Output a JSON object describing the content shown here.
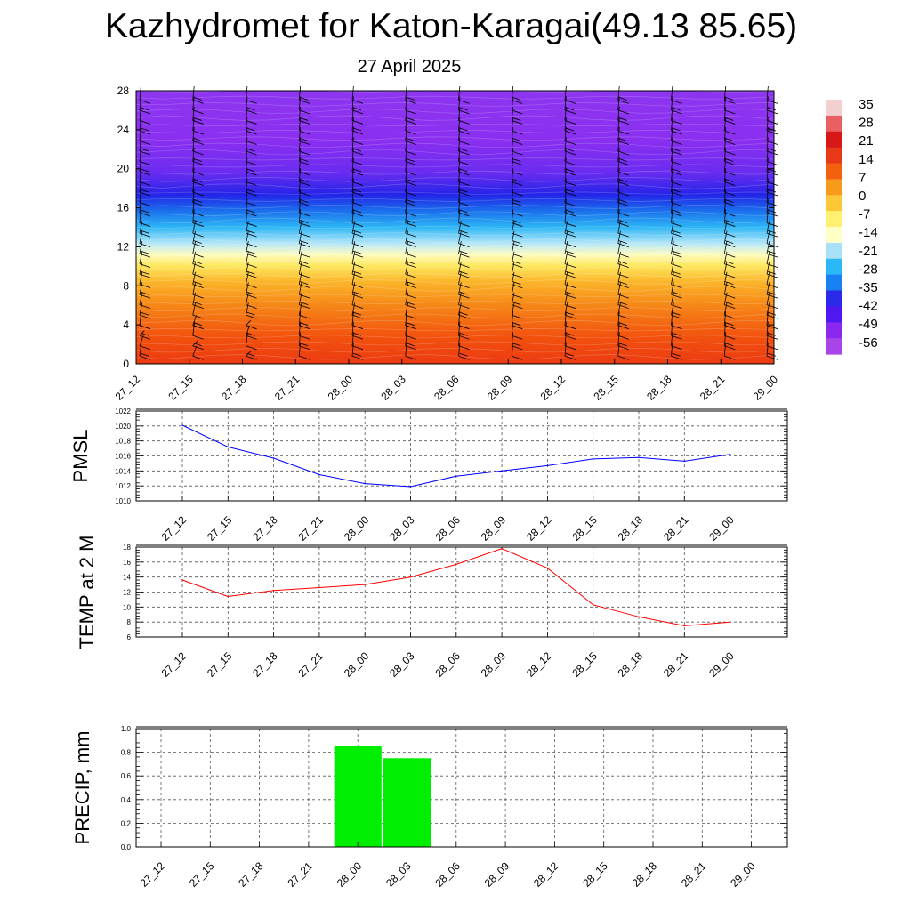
{
  "title": "Kazhydromet for Katon-Karagai(49.13 85.65)",
  "subtitle": "27 April 2025",
  "time_labels": [
    "27_12",
    "27_15",
    "27_18",
    "27_21",
    "28_00",
    "28_03",
    "28_06",
    "28_09",
    "28_12",
    "28_15",
    "28_18",
    "28_21",
    "29_00"
  ],
  "colorbar": {
    "labels": [
      "35",
      "28",
      "21",
      "14",
      "7",
      "0",
      "-7",
      "-14",
      "-21",
      "-28",
      "-35",
      "-42",
      "-49",
      "-56"
    ],
    "colors": [
      "#f2d0d0",
      "#e86060",
      "#d81818",
      "#e83818",
      "#f26010",
      "#f89a1c",
      "#fcc838",
      "#fff070",
      "#ffffc8",
      "#a8e0f8",
      "#2ab8f8",
      "#1880f0",
      "#2a2ae8",
      "#5018f0",
      "#8a28f0",
      "#a844e8"
    ]
  },
  "chart_data": [
    {
      "type": "heatmap",
      "title": "",
      "x_categories": [
        "27_12",
        "27_15",
        "27_18",
        "27_21",
        "28_00",
        "28_03",
        "28_06",
        "28_09",
        "28_12",
        "28_15",
        "28_18",
        "28_21",
        "29_00"
      ],
      "ylim": [
        0,
        28
      ],
      "yticks": [
        0,
        4,
        8,
        12,
        16,
        20,
        24,
        28
      ],
      "value_range": [
        -56,
        35
      ],
      "note_layers": [
        {
          "level": 0,
          "value": 10
        },
        {
          "level": 4,
          "value": 7
        },
        {
          "level": 8,
          "value": 1
        },
        {
          "level": 11,
          "value": -10
        },
        {
          "level": 13,
          "value": -22
        },
        {
          "level": 15,
          "value": -38
        },
        {
          "level": 17,
          "value": -52
        },
        {
          "level": 20,
          "value": -56
        },
        {
          "level": 24,
          "value": -58
        },
        {
          "level": 28,
          "value": -60
        }
      ]
    },
    {
      "type": "line",
      "ylabel": "PMSL",
      "categories": [
        "27_12",
        "27_15",
        "27_18",
        "27_21",
        "28_00",
        "28_03",
        "28_06",
        "28_09",
        "28_12",
        "28_15",
        "28_18",
        "28_21",
        "29_00"
      ],
      "values": [
        1020.1,
        1017.2,
        1015.7,
        1013.5,
        1012.3,
        1011.9,
        1013.3,
        1014.0,
        1014.7,
        1015.6,
        1015.8,
        1015.3,
        1016.2
      ],
      "ylim": [
        1010,
        1022
      ],
      "yticks": [
        1010,
        1012,
        1014,
        1016,
        1018,
        1020,
        1022
      ],
      "color": "#0000ff",
      "grid": true
    },
    {
      "type": "line",
      "ylabel": "TEMP at 2 M",
      "categories": [
        "27_12",
        "27_15",
        "27_18",
        "27_21",
        "28_00",
        "28_03",
        "28_06",
        "28_09",
        "28_12",
        "28_15",
        "28_18",
        "28_21",
        "29_00"
      ],
      "values": [
        13.6,
        11.4,
        12.2,
        12.6,
        13.0,
        14.0,
        15.7,
        17.8,
        15.2,
        10.3,
        8.7,
        7.5,
        8.0
      ],
      "ylim": [
        6,
        18
      ],
      "yticks": [
        6,
        8,
        10,
        12,
        14,
        16,
        18
      ],
      "color": "#ff0000",
      "grid": true
    },
    {
      "type": "bar",
      "ylabel": "PRECIP, mm",
      "categories": [
        "27_12",
        "27_15",
        "27_18",
        "27_21",
        "28_00",
        "28_03",
        "28_06",
        "28_09",
        "28_12",
        "28_15",
        "28_18",
        "28_21",
        "29_00"
      ],
      "values": [
        0,
        0,
        0,
        0,
        0.85,
        0.75,
        0,
        0,
        0,
        0,
        0,
        0,
        0
      ],
      "ylim": [
        0,
        1.0
      ],
      "yticks": [
        "0.0",
        "0.2",
        "0.4",
        "0.6",
        "0.8",
        "1.0"
      ],
      "color": "#00ee00",
      "grid": true
    }
  ]
}
